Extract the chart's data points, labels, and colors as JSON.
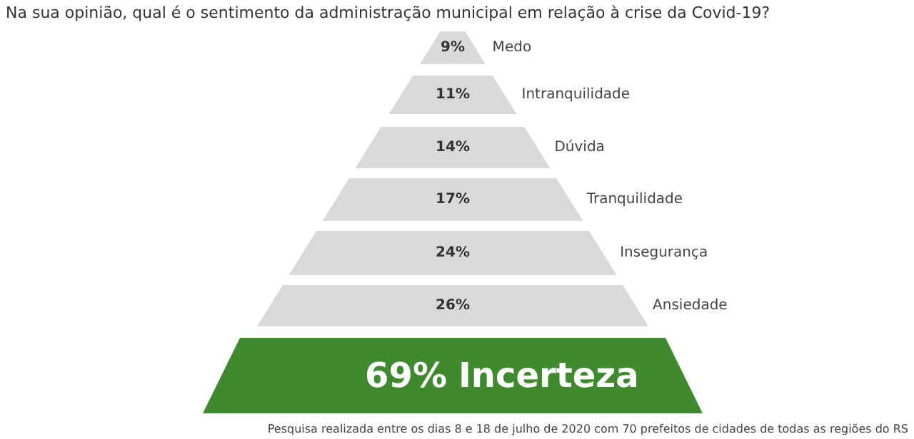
{
  "chart_data": {
    "type": "other",
    "title": "Na sua opinião, qual é o sentimento da administração municipal em relação à crise da Covid-19?",
    "categories": [
      "Medo",
      "Intranquilidade",
      "Dúvida",
      "Tranquilidade",
      "Insegurança",
      "Ansiedade",
      "Incerteza"
    ],
    "values": [
      9,
      11,
      14,
      17,
      24,
      26,
      69
    ],
    "value_labels": [
      "9%",
      "11%",
      "14%",
      "17%",
      "24%",
      "26%",
      "69%"
    ],
    "colors": [
      "#d9d9d9",
      "#d9d9d9",
      "#d9d9d9",
      "#d9d9d9",
      "#d9d9d9",
      "#d9d9d9",
      "#3f8a2f"
    ],
    "annotations": [
      "Pesquisa realizada entre os dias 8 e 18 de julho de 2020 com 70 prefeitos de cidades de todas as regiões do RS"
    ]
  }
}
